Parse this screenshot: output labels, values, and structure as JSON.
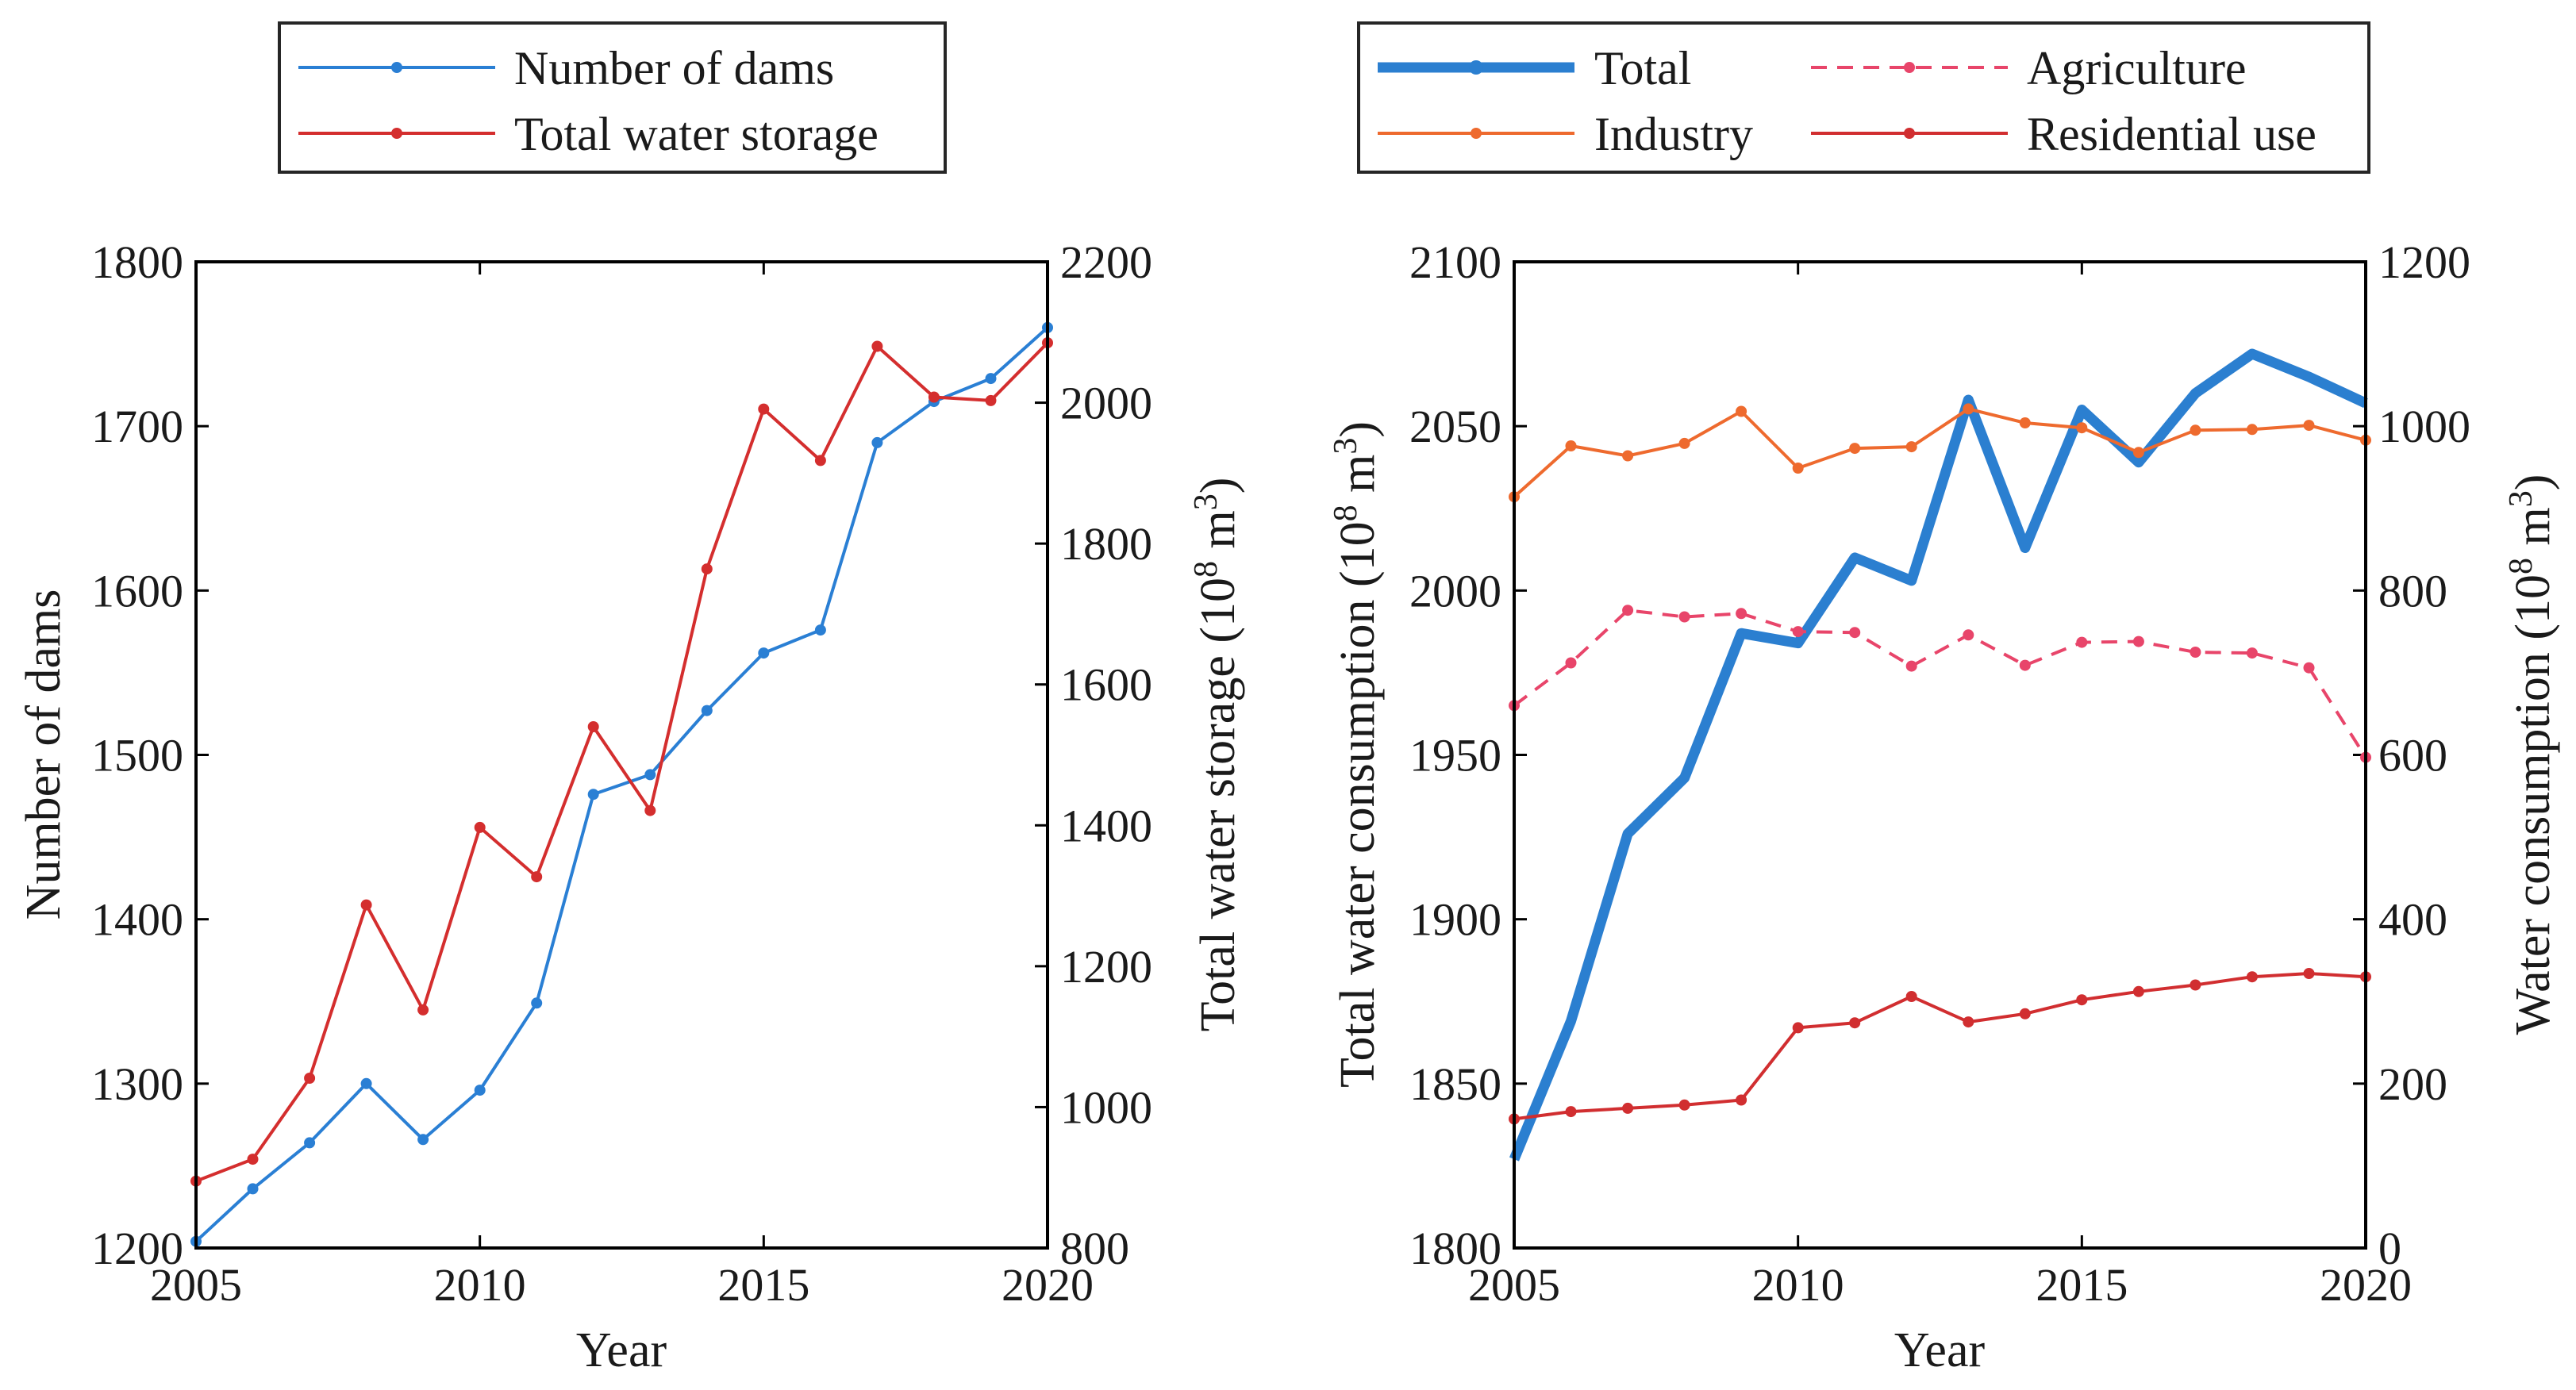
{
  "chart_data": [
    {
      "type": "line",
      "xlabel": "Year",
      "ylabel": "Number of dams",
      "y2label": "Total water storage (10",
      "y2label_exp": "8",
      "y2label_unit": " m",
      "y2label_unit_exp": "3",
      "y2label_close": ")",
      "xlim": [
        2005,
        2020
      ],
      "ylim": [
        1200,
        1800
      ],
      "y2lim": [
        800,
        2200
      ],
      "xticks": [
        "2005",
        "2010",
        "2015",
        "2020"
      ],
      "yticks": [
        "1200",
        "1300",
        "1400",
        "1500",
        "1600",
        "1700",
        "1800"
      ],
      "y2ticks": [
        "800",
        "1000",
        "1200",
        "1400",
        "1600",
        "1800",
        "2000",
        "2200"
      ],
      "x": [
        2005,
        2006,
        2007,
        2008,
        2009,
        2010,
        2011,
        2012,
        2013,
        2014,
        2015,
        2016,
        2017,
        2018,
        2019,
        2020
      ],
      "series": [
        {
          "name": "Number of dams",
          "axis": "left",
          "color": "#2a7fd4",
          "values": [
            1204,
            1236,
            1264,
            1300,
            1266,
            1296,
            1349,
            1476,
            1488,
            1527,
            1562,
            1576,
            1690,
            1715,
            1729,
            1760
          ]
        },
        {
          "name": "Total water storage",
          "axis": "right",
          "color": "#d42e2e",
          "values": [
            895,
            926,
            1041,
            1287,
            1138,
            1397,
            1327,
            1540,
            1421,
            1764,
            1991,
            1918,
            2080,
            2008,
            2003,
            2085
          ]
        }
      ]
    },
    {
      "type": "line",
      "xlabel": "Year",
      "ylabel": "Total water consumption (10",
      "ylabel_exp": "8",
      "ylabel_unit": " m",
      "ylabel_unit_exp": "3",
      "ylabel_close": ")",
      "y2label": "Water consumption (10",
      "y2label_exp": "8",
      "y2label_unit": " m",
      "y2label_unit_exp": "3",
      "y2label_close": ")",
      "xlim": [
        2005,
        2020
      ],
      "ylim": [
        1800,
        2100
      ],
      "y2lim": [
        0,
        1200
      ],
      "xticks": [
        "2005",
        "2010",
        "2015",
        "2020"
      ],
      "yticks": [
        "1800",
        "1850",
        "1900",
        "1950",
        "2000",
        "2050",
        "2100"
      ],
      "y2ticks": [
        "0",
        "200",
        "400",
        "600",
        "800",
        "1000",
        "1200"
      ],
      "x": [
        2005,
        2006,
        2007,
        2008,
        2009,
        2010,
        2011,
        2012,
        2013,
        2014,
        2015,
        2016,
        2017,
        2018,
        2019,
        2020
      ],
      "series": [
        {
          "name": "Total",
          "axis": "left",
          "color": "#2b7fd0",
          "style": "thick",
          "values": [
            1827,
            1869,
            1926,
            1943,
            1987,
            1984,
            2010,
            2003,
            2058,
            2013,
            2055,
            2039,
            2060,
            2072,
            2065,
            2057
          ]
        },
        {
          "name": "Agriculture",
          "axis": "right",
          "color": "#e8456a",
          "style": "dashed",
          "values": [
            660,
            712,
            776,
            768,
            772,
            750,
            749,
            708,
            746,
            709,
            737,
            738,
            725,
            724,
            706,
            597
          ]
        },
        {
          "name": "Industry",
          "axis": "right",
          "color": "#ee6a2e",
          "style": "solid",
          "values": [
            914,
            976,
            964,
            979,
            1018,
            949,
            973,
            975,
            1021,
            1004,
            998,
            968,
            995,
            996,
            1001,
            983
          ]
        },
        {
          "name": "Residential use",
          "axis": "right",
          "color": "#d12e30",
          "style": "solid",
          "values": [
            157,
            166,
            170,
            174,
            180,
            268,
            274,
            306,
            275,
            285,
            302,
            312,
            320,
            330,
            334,
            330
          ]
        }
      ]
    }
  ]
}
